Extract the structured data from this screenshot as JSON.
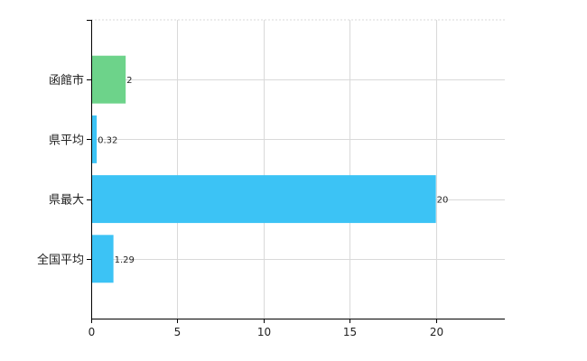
{
  "chart_data": {
    "type": "bar",
    "orientation": "horizontal",
    "categories": [
      "函館市",
      "県平均",
      "県最大",
      "全国平均"
    ],
    "values": [
      2,
      0.32,
      20,
      1.29
    ],
    "data_labels": [
      "2",
      "0.32",
      "20",
      "1.29"
    ],
    "bar_colors": [
      "#6dd38a",
      "#3cc3f5",
      "#3cc3f5",
      "#3cc3f5"
    ],
    "xlim": [
      0,
      24
    ],
    "xticks": [
      0,
      5,
      10,
      15,
      20
    ],
    "grid": true,
    "title": "",
    "xlabel": "",
    "ylabel": ""
  }
}
